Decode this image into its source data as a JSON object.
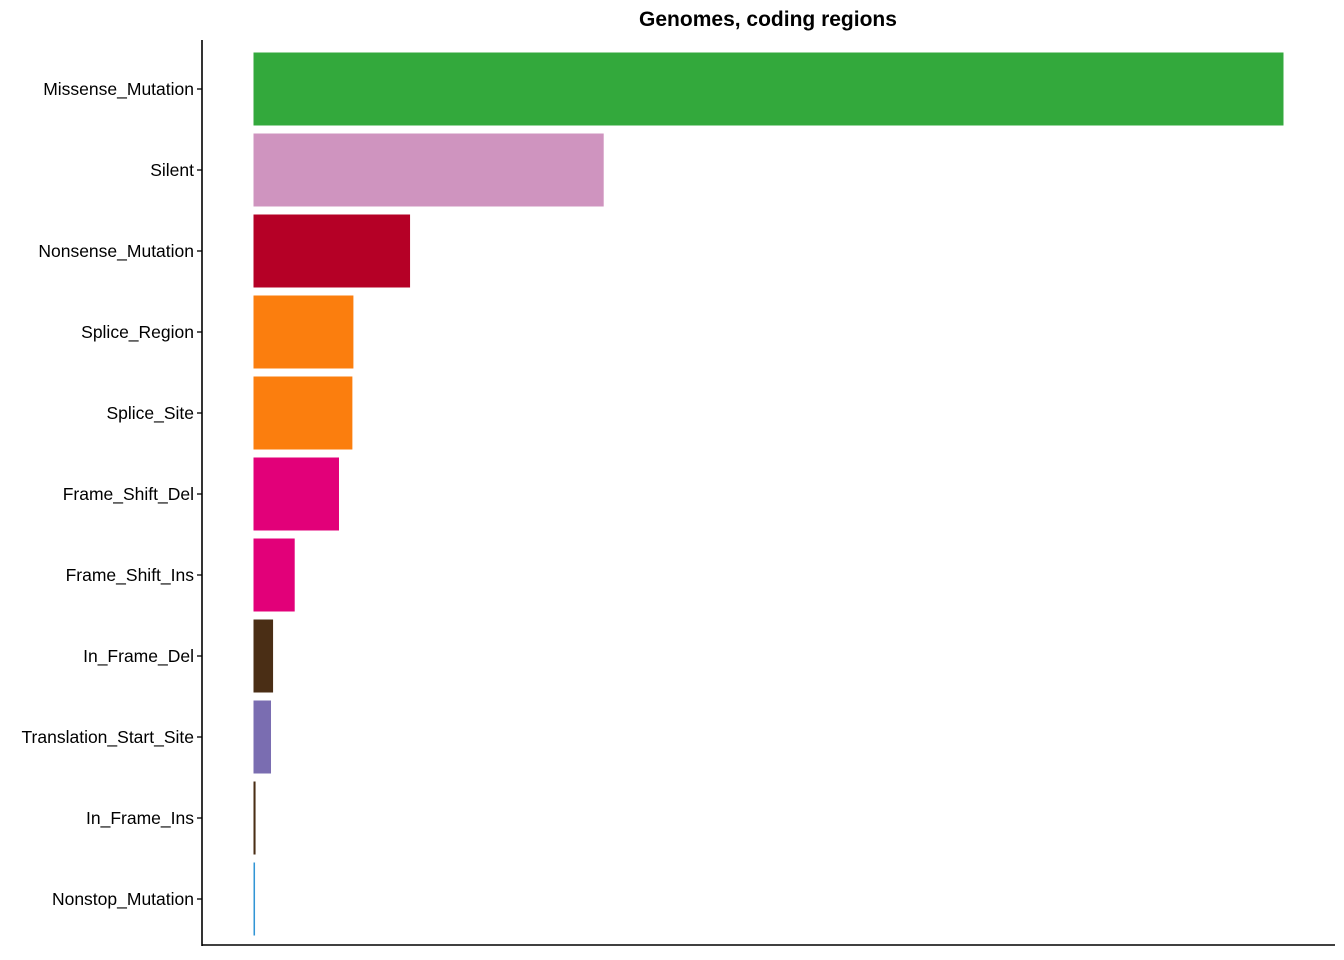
{
  "chart_data": {
    "type": "bar",
    "orientation": "horizontal",
    "title": "Genomes, coding regions",
    "xlabel": "",
    "ylabel": "",
    "x_axis_ticks_visible": false,
    "grid": false,
    "legend": "none",
    "categories": [
      "Missense_Mutation",
      "Silent",
      "Nonsense_Mutation",
      "Splice_Region",
      "Splice_Site",
      "Frame_Shift_Del",
      "Frame_Shift_Ins",
      "In_Frame_Del",
      "Translation_Start_Site",
      "In_Frame_Ins",
      "Nonstop_Mutation"
    ],
    "values": [
      100,
      34,
      15.2,
      9.7,
      9.6,
      8.3,
      4.0,
      1.9,
      1.7,
      0.2,
      0.15
    ],
    "colors": [
      "#33a93c",
      "#cf94bf",
      "#b50026",
      "#fb7e0e",
      "#fb7e0e",
      "#e20079",
      "#e20079",
      "#4a2e15",
      "#7a6db1",
      "#4a2e15",
      "#3195d5"
    ],
    "xlim": [
      -5,
      105
    ]
  }
}
